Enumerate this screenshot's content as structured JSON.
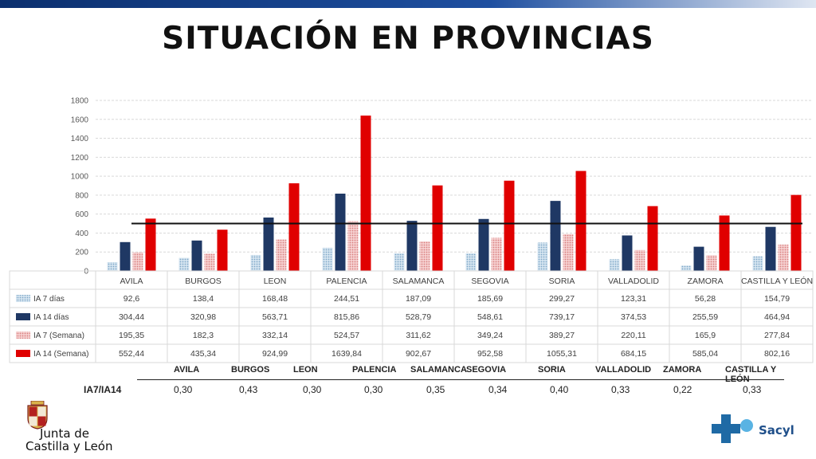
{
  "title": "SITUACIÓN EN PROVINCIAS",
  "chart_data": {
    "type": "bar",
    "categories": [
      "AVILA",
      "BURGOS",
      "LEON",
      "PALENCIA",
      "SALAMANCA",
      "SEGOVIA",
      "SORIA",
      "VALLADOLID",
      "ZAMORA",
      "CASTILLA Y LEÓN"
    ],
    "series": [
      {
        "name": "IA 7 días",
        "labels": [
          "92,6",
          "138,4",
          "168,48",
          "244,51",
          "187,09",
          "185,69",
          "299,27",
          "123,31",
          "56,28",
          "154,79"
        ],
        "values": [
          92.6,
          138.4,
          168.48,
          244.51,
          187.09,
          185.69,
          299.27,
          123.31,
          56.28,
          154.79
        ],
        "color": "#a8c6dc",
        "pattern": "dots"
      },
      {
        "name": "IA 14 días",
        "labels": [
          "304,44",
          "320,98",
          "563,71",
          "815,86",
          "528,79",
          "548,61",
          "739,17",
          "374,53",
          "255,59",
          "464,94"
        ],
        "values": [
          304.44,
          320.98,
          563.71,
          815.86,
          528.79,
          548.61,
          739.17,
          374.53,
          255.59,
          464.94
        ],
        "color": "#1f3864",
        "pattern": "solid"
      },
      {
        "name": "IA 7 (Semana)",
        "labels": [
          "195,35",
          "182,3",
          "332,14",
          "524,57",
          "311,62",
          "349,24",
          "389,27",
          "220,11",
          "165,9",
          "277,84"
        ],
        "values": [
          195.35,
          182.3,
          332.14,
          524.57,
          311.62,
          349.24,
          389.27,
          220.11,
          165.9,
          277.84
        ],
        "color": "#e8a0a0",
        "pattern": "dots"
      },
      {
        "name": "IA 14 (Semana)",
        "labels": [
          "552,44",
          "435,34",
          "924,99",
          "1639,84",
          "902,67",
          "952,58",
          "1055,31",
          "684,15",
          "585,04",
          "802,16"
        ],
        "values": [
          552.44,
          435.34,
          924.99,
          1639.84,
          902.67,
          952.58,
          1055.31,
          684.15,
          585.04,
          802.16
        ],
        "color": "#e00000",
        "pattern": "solid"
      }
    ],
    "reference_line": 500,
    "ylim": [
      0,
      1800
    ],
    "yticks": [
      0,
      200,
      400,
      600,
      800,
      1000,
      1200,
      1400,
      1600,
      1800
    ],
    "grid": true
  },
  "ratio_table": {
    "row_label": "IA7/IA14",
    "headers": [
      "AVILA",
      "BURGOS",
      "LEON",
      "PALENCIA",
      "SALAMANCA",
      "SEGOVIA",
      "SORIA",
      "VALLADOLID",
      "ZAMORA",
      "CASTILLA Y LEÓN"
    ],
    "values": [
      "0,30",
      "0,43",
      "0,30",
      "0,30",
      "0,35",
      "0,34",
      "0,40",
      "0,33",
      "0,22",
      "0,33"
    ]
  },
  "footer": {
    "left_logo_line1": "Junta de",
    "left_logo_line2": "Castilla y León",
    "right_logo": "Sacyl"
  }
}
